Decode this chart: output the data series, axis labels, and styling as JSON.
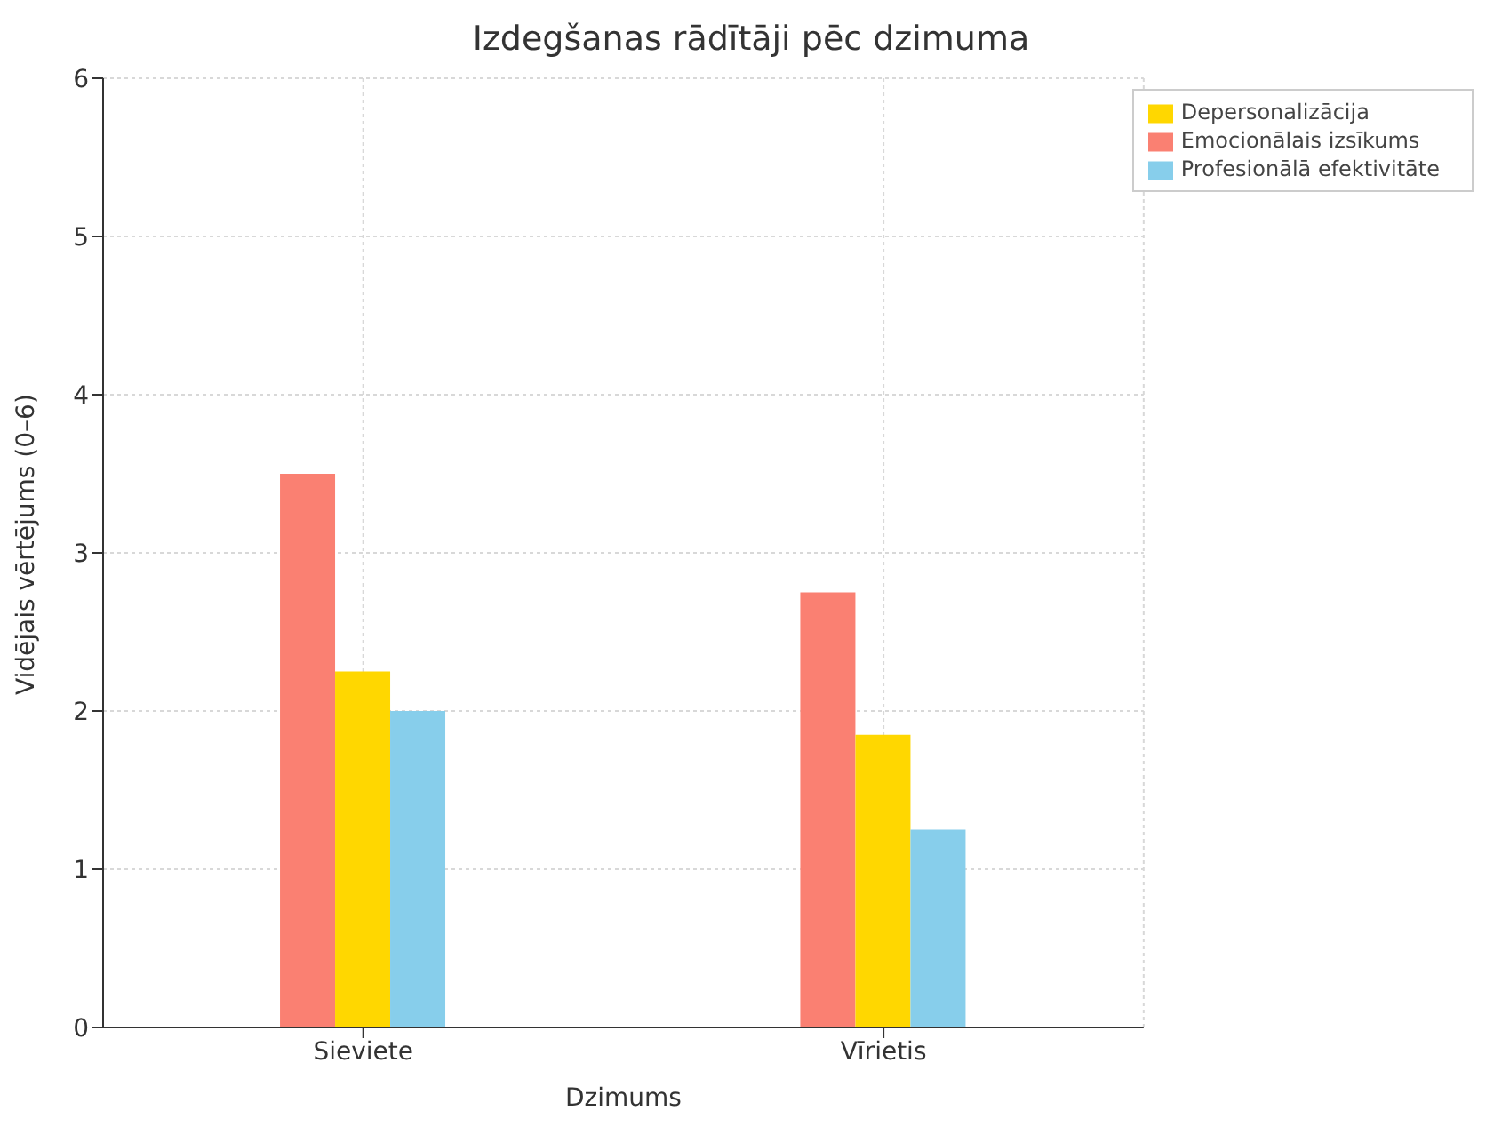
{
  "chart_data": {
    "type": "bar",
    "title": "Izdegšanas rādītāji pēc dzimuma",
    "xlabel": "Dzimums",
    "ylabel": "Vidējais vērtējums (0–6)",
    "categories": [
      "Sieviete",
      "Vīrietis"
    ],
    "series": [
      {
        "name": "Emocionālais izsīkums",
        "color": "#fa8072",
        "values": [
          3.5,
          2.75
        ]
      },
      {
        "name": "Depersonalizācija",
        "color": "#ffd700",
        "values": [
          2.25,
          1.85
        ]
      },
      {
        "name": "Profesionālā efektivitāte",
        "color": "#87ceeb",
        "values": [
          2.0,
          1.25
        ]
      }
    ],
    "ylim": [
      0,
      6
    ],
    "yticks": [
      0,
      1,
      2,
      3,
      4,
      5,
      6
    ],
    "grid": true,
    "legend": "top right"
  }
}
